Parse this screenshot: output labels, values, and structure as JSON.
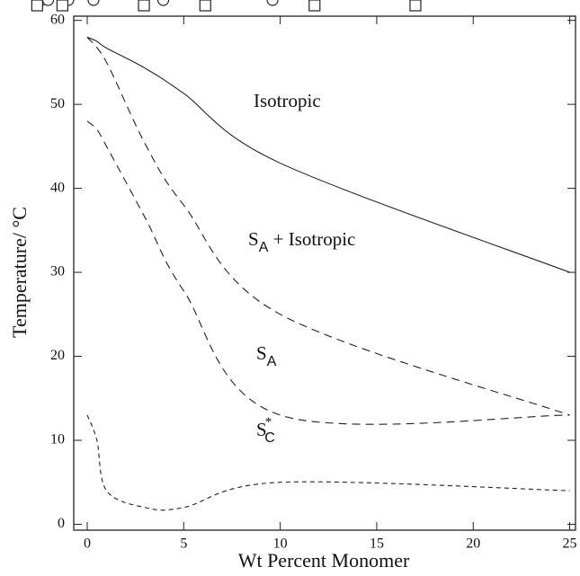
{
  "chart_data": {
    "type": "line",
    "xlabel": "Wt Percent Monomer",
    "ylabel": "Temperature/ °C",
    "xlim": [
      -0.7,
      25.3
    ],
    "ylim": [
      -0.7,
      60.5
    ],
    "xticks": [
      0,
      5,
      10,
      15,
      20,
      25
    ],
    "yticks": [
      0,
      10,
      20,
      30,
      40,
      50,
      60
    ],
    "series": [
      {
        "color": "#222222",
        "marker": "circle",
        "dash": "none",
        "x": [
          0,
          0.5,
          1,
          3,
          5,
          10,
          25
        ],
        "values": [
          58,
          57.5,
          56.7,
          54.3,
          51.3,
          43,
          30
        ]
      },
      {
        "color": "#222222",
        "marker": "square",
        "dash": "9 6",
        "x": [
          0,
          1,
          3,
          5,
          10,
          25
        ],
        "values": [
          58,
          55,
          45.3,
          38,
          25,
          13
        ]
      },
      {
        "color": "#222222",
        "marker": "triangle-up",
        "dash": "9 6",
        "x": [
          0,
          0.5,
          1,
          3,
          5,
          10,
          25
        ],
        "values": [
          48,
          47,
          45,
          36.5,
          27.8,
          13,
          13
        ]
      },
      {
        "color": "#222222",
        "marker": "triangle-down",
        "dash": "5 4",
        "x": [
          0,
          0.5,
          1,
          3,
          5,
          10,
          25
        ],
        "values": [
          13,
          10,
          4,
          2,
          2,
          5,
          4
        ]
      }
    ],
    "annotations": [
      {
        "main": "Isotropic"
      },
      {
        "main": "S",
        "sub": "A",
        "rest": " + Isotropic"
      },
      {
        "main": "S",
        "sub": "A"
      },
      {
        "main": "S",
        "sub": "C",
        "sup": "*"
      }
    ]
  }
}
